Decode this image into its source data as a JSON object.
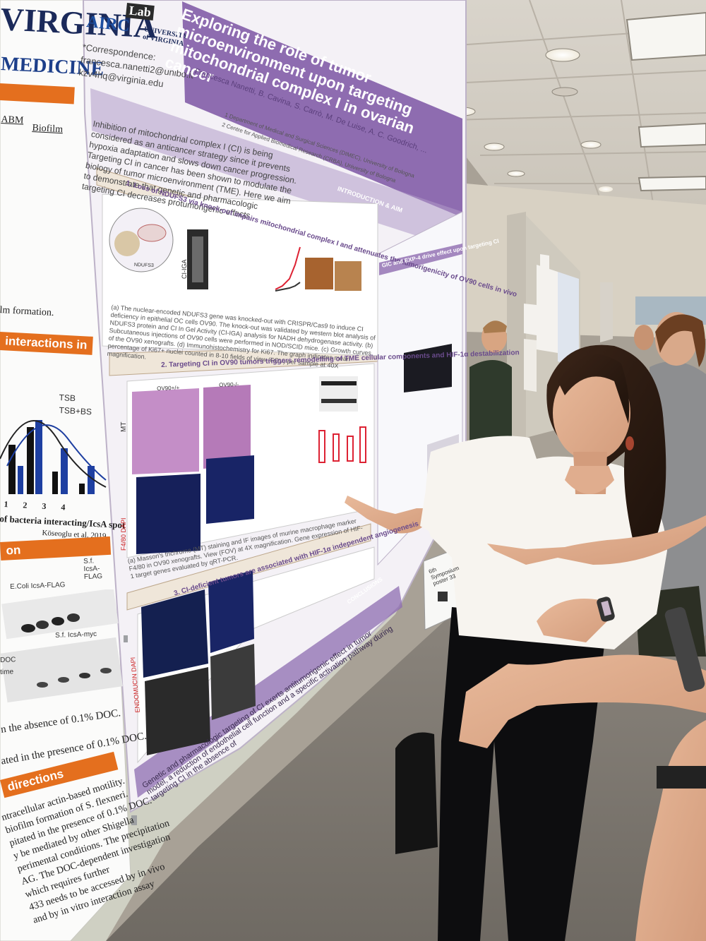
{
  "poster": {
    "title": "Exploring the role of tumor microenvironment upon targeting mitochondrial complex I in ovarian cancer",
    "authors": "Francesca Nanetti, B. Cavina, S. Carrò, M. De Luise, A. C. Goodrich, ...",
    "affiliation_1": "1 Department of Medical and Surgical Sciences (DIMEC), University of Bologna",
    "affiliation_2": "2 Centre for Applied Biomedical Research (CRBA), University of Bologna",
    "correspondence_label": "*Correspondence:",
    "correspondence_email_1": "francesca.nanetti2@unibo.it",
    "correspondence_email_2": "kzv4hq@virginia.edu",
    "intro_header": "INTRODUCTION & AIM",
    "intro_text": "Inhibition of mitochondrial complex I (CI) is being considered as an anticancer strategy since it prevents hypoxia adaptation and slows down cancer progression. Targeting CI in cancer has been shown to modulate the biology of tumor microenvironment (TME). Here we aim to demonstrate that genetic and pharmacologic targeting CI decreases protumorigenic effects.",
    "section_1": "1. Loss of NDUFS3 via knock-out impairs mitochondrial complex I and attenuates the tumorigenicity of OV90 cells in vivo",
    "section_1_caption": "(a) The nuclear-encoded NDUFS3 gene was knocked-out with CRISPR/Cas9 to induce CI deficiency in epithelial OC cells OV90. The knock-out was validated by western blot analysis of NDUFS3 protein and CI In Gel Activity (CI-IGA) analysis for NADH dehydrogenase activity. (b) Subcutaneous injections of OV90 cells were performed in NOD/SCID mice. (c) Growth curves of the OV90 xenografts. (d) Immunohistochemistry for Ki67. The graph indicates mean percentage of Ki67+ nuclei counted in 8-10 fields of view (FOV) per sample at 40X magnification.",
    "section_2": "2. Targeting CI in OV90 tumors triggers remodelling of TME cellular components and HIF-1α destabilization",
    "section_2_caption": "(a) Masson's trichrome (MT) staining and IF images of murine macrophage marker F4/80 in OV90 xenografts. View (FOV) at 4X magnification. Gene expression of HIF-1 target genes evaluated by qRT-PCR.",
    "section_3": "3. CI-deficient tumors are associated with HIF-1α independent angiogenesis",
    "side_header": "GIC and EXP-4 drive effect upon targeting CI",
    "conclusion_header": "CONCLUSIONS",
    "conclusion_text": "Genetic and pharmacologic targeting of CI exerts antitumorigenic effect in tumor model, a reduction of endothelial cell function and a specific activation pathway during targeting CI in the absence of",
    "labels": [
      "MT",
      "F4/80 DAPI",
      "ENDOMUCIN DAPI",
      "CI-IGA",
      "NDUFS3",
      "OV90+/+",
      "OV90-/-"
    ]
  },
  "left_poster": {
    "logo_top": "VIRGINIA",
    "logo_sub": "MEDICINE",
    "col_abm": "ABM",
    "col_biofilm": "Biofilm",
    "text_formation": "lm formation.",
    "band_interactions": "interactions in",
    "legend_tsb": "TSB",
    "legend_tsb_bs": "TSB+BS",
    "axis_label": "of bacteria interacting/IcsA spot",
    "citation": "Köseoglu et al. 2019",
    "band_2": "on",
    "blot_1": "E.Coli IcsA-FLAG",
    "blot_2": "S.f. IcsA-FLAG",
    "blot_3": "S.f. IcsA-myc",
    "doc_label": "DOC",
    "time_label": "time",
    "text_absence": "n the absence of 0.1% DOC.",
    "text_presence": "ated in the presence of 0.1% DOC.",
    "band_directions": "directions",
    "directions_lines": [
      "ntracellular actin-based motility.",
      "biofilm formation of S. flexneri.",
      "pitated in the presence of 0.1% DOC.",
      "y be mediated by other Shigella",
      "perimental conditions. The precipitation",
      "AG. The DOC-dependent investigation",
      "which requires further",
      "433 needs to be accessed by in vivo",
      "and by in vitro interaction assay"
    ],
    "axis_ticks": [
      "1",
      "2",
      "3",
      "4"
    ]
  },
  "logos": {
    "airc": "AIRC",
    "lab": "Lab",
    "university": "UNIVERSITY of VIRGINIA"
  },
  "small_sign": {
    "line_1": "6th Symposium",
    "line_2": "poster 33"
  },
  "colors": {
    "poster_purple": "#8e6cb0",
    "band_orange": "#e46f1e",
    "poster_bg": "#f4f1f6"
  }
}
